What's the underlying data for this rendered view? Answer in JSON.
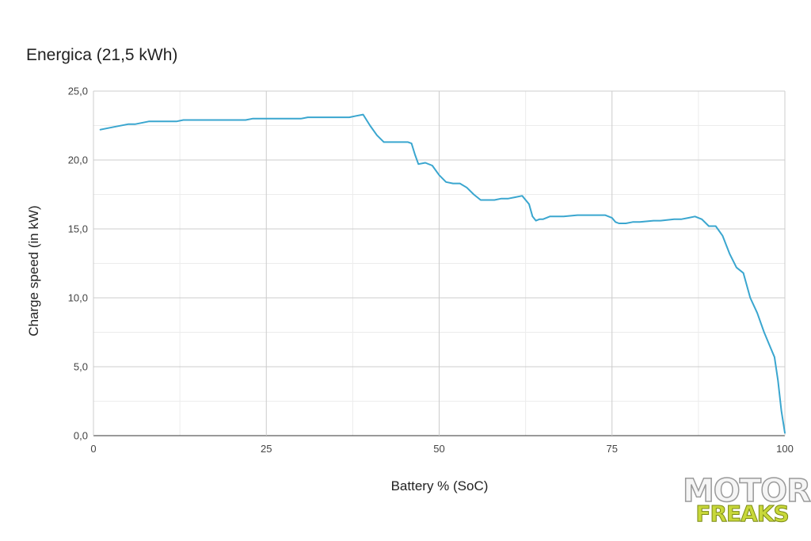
{
  "chart_data": {
    "type": "line",
    "title": "Energica (21,5 kWh)",
    "xlabel": "Battery % (SoC)",
    "ylabel": "Charge speed (in kW)",
    "xlim": [
      0,
      100
    ],
    "ylim": [
      0,
      25
    ],
    "x_ticks": [
      0,
      25,
      50,
      75,
      100
    ],
    "x_tick_labels": [
      "0",
      "25",
      "50",
      "75",
      "100"
    ],
    "y_ticks": [
      0,
      5,
      10,
      15,
      20,
      25
    ],
    "y_tick_labels": [
      "0,0",
      "5,0",
      "10,0",
      "15,0",
      "20,0",
      "25,0"
    ],
    "grid": true,
    "legend": "none",
    "line_color": "#3aa6cf",
    "series": [
      {
        "x": [
          1,
          3,
          5,
          6,
          8,
          10,
          12,
          13,
          15,
          18,
          21,
          22,
          23,
          25,
          28,
          30,
          31,
          33,
          35,
          37,
          38,
          39,
          40,
          41,
          42,
          44,
          45.5,
          46,
          46.5,
          47,
          48,
          49,
          50,
          51,
          52,
          53,
          54,
          55,
          56,
          57,
          58,
          59,
          60,
          61,
          62,
          63,
          63.5,
          64,
          64.5,
          65,
          66,
          67,
          68,
          70,
          72,
          73,
          74,
          75,
          75.5,
          76,
          77,
          78,
          79,
          81,
          82,
          84,
          85,
          86,
          87,
          88,
          89,
          90,
          91,
          92,
          93,
          94,
          95,
          96,
          97,
          98,
          98.5,
          99,
          99.5,
          100
        ],
        "y": [
          22.2,
          22.4,
          22.6,
          22.6,
          22.8,
          22.8,
          22.8,
          22.9,
          22.9,
          22.9,
          22.9,
          22.9,
          23.0,
          23.0,
          23.0,
          23.0,
          23.1,
          23.1,
          23.1,
          23.1,
          23.2,
          23.3,
          22.5,
          21.8,
          21.3,
          21.3,
          21.3,
          21.2,
          20.4,
          19.7,
          19.8,
          19.6,
          18.9,
          18.4,
          18.3,
          18.3,
          18.0,
          17.5,
          17.1,
          17.1,
          17.1,
          17.2,
          17.2,
          17.3,
          17.4,
          16.8,
          15.9,
          15.6,
          15.7,
          15.7,
          15.9,
          15.9,
          15.9,
          16.0,
          16.0,
          16.0,
          16.0,
          15.8,
          15.5,
          15.4,
          15.4,
          15.5,
          15.5,
          15.6,
          15.6,
          15.7,
          15.7,
          15.8,
          15.9,
          15.7,
          15.2,
          15.2,
          14.5,
          13.2,
          12.2,
          11.8,
          10.0,
          8.9,
          7.5,
          6.3,
          5.7,
          4.0,
          1.8,
          0.2
        ]
      }
    ]
  },
  "logo": {
    "line1": "MOTOR",
    "line2": "FREAKS"
  }
}
